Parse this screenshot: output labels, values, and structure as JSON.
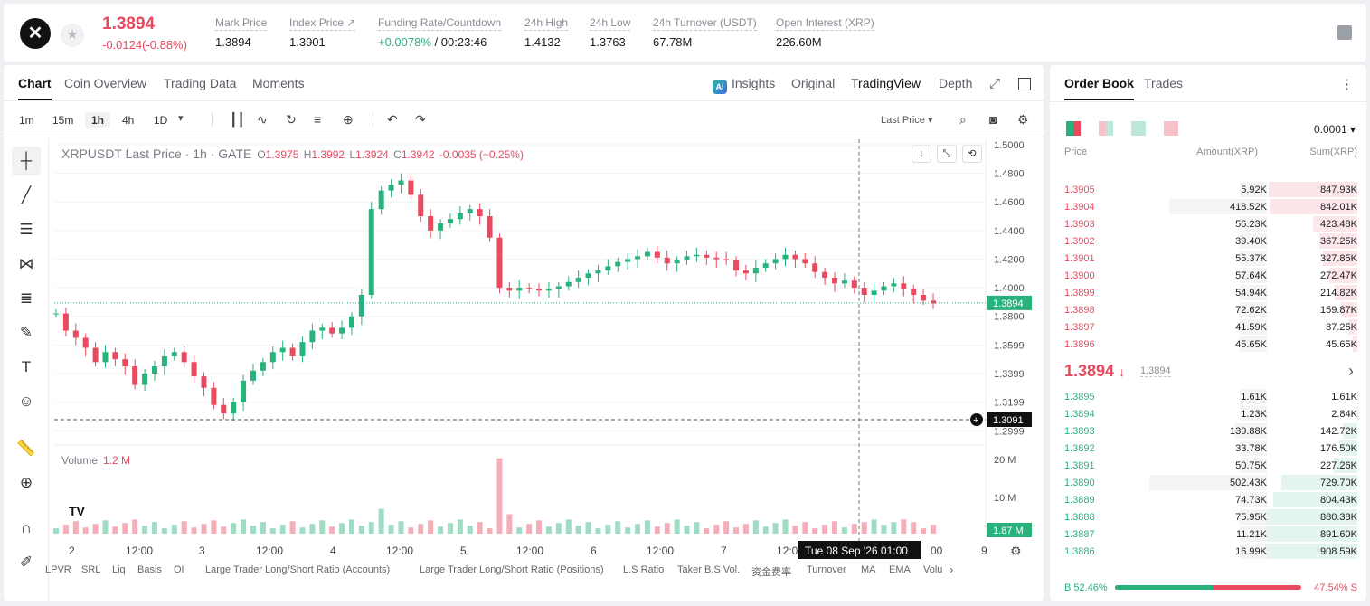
{
  "header": {
    "logo_glyph": "✕",
    "star_glyph": "★",
    "price": "1.3894",
    "change": "-0.0124(-0.88%)",
    "stats": [
      {
        "label": "Mark Price",
        "value": "1.3894"
      },
      {
        "label": "Index Price ↗",
        "value": "1.3901"
      },
      {
        "label": "Funding Rate/Countdown",
        "value_green": "+0.0078%",
        "value": "/ 00:23:46"
      },
      {
        "label": "24h High",
        "value": "1.4132"
      },
      {
        "label": "24h Low",
        "value": "1.3763"
      },
      {
        "label": "24h Turnover (USDT)",
        "value": "67.78M"
      },
      {
        "label": "Open Interest (XRP)",
        "value": "226.60M"
      }
    ]
  },
  "chart_tabs": {
    "items": [
      "Chart",
      "Coin Overview",
      "Trading Data",
      "Moments"
    ],
    "right": [
      "Insights",
      "Original",
      "TradingView",
      "Depth"
    ],
    "ai": "AI"
  },
  "intervals": [
    "1m",
    "15m",
    "1h",
    "4h",
    "1D"
  ],
  "toolbar": {
    "last_price": "Last Price ▾",
    "dropdown": "▾"
  },
  "legend": {
    "title": "XRPUSDT Last Price · 1h · GATE",
    "o": "1.3975",
    "h": "1.3992",
    "l": "1.3924",
    "c": "1.3942",
    "chg": "-0.0035 (−0.25%)",
    "o_l": "O",
    "h_l": "H",
    "l_l": "L",
    "c_l": "C"
  },
  "volume": {
    "label": "Volume",
    "value": "1.2 M"
  },
  "axis": {
    "price_ticks": [
      "1.5000",
      "1.4800",
      "1.4600",
      "1.4400",
      "1.4200",
      "1.4000",
      "1.3800",
      "1.3599",
      "1.3399",
      "1.3199",
      "1.2999"
    ],
    "vol_ticks": [
      "20 M",
      "10 M"
    ],
    "x_ticks": [
      "2",
      "12:00",
      "3",
      "12:00",
      "4",
      "12:00",
      "5",
      "12:00",
      "6",
      "12:00",
      "7",
      "12:0",
      "00",
      "9"
    ],
    "price_label": "1.3894",
    "cross_label": "1.3091",
    "vol_label": "1.87 M",
    "time_label": "Tue 08 Sep '26   01:00"
  },
  "indicators": [
    "LPVR",
    "SRL",
    "Liq",
    "Basis",
    "OI",
    "Large Trader Long/Short Ratio (Accounts)",
    "Large Trader Long/Short Ratio (Positions)",
    "L.S Ratio",
    "Taker B.S Vol.",
    "资金费率",
    "Turnover",
    "MA",
    "EMA",
    "Volu"
  ],
  "chart_data": {
    "type": "candlestick",
    "ylim": [
      1.29,
      1.5
    ],
    "ylabel": "",
    "xlabel": "",
    "approx_closes": [
      1.382,
      1.37,
      1.365,
      1.358,
      1.348,
      1.355,
      1.35,
      1.345,
      1.332,
      1.34,
      1.345,
      1.352,
      1.355,
      1.348,
      1.338,
      1.33,
      1.318,
      1.312,
      1.32,
      1.335,
      1.342,
      1.348,
      1.355,
      1.358,
      1.352,
      1.362,
      1.37,
      1.372,
      1.368,
      1.372,
      1.38,
      1.395,
      1.455,
      1.468,
      1.472,
      1.475,
      1.465,
      1.45,
      1.44,
      1.445,
      1.448,
      1.452,
      1.455,
      1.45,
      1.435,
      1.4,
      1.398,
      1.4,
      1.399,
      1.398,
      1.399,
      1.401,
      1.404,
      1.407,
      1.41,
      1.412,
      1.415,
      1.418,
      1.42,
      1.422,
      1.425,
      1.421,
      1.417,
      1.419,
      1.422,
      1.423,
      1.421,
      1.42,
      1.419,
      1.412,
      1.41,
      1.414,
      1.417,
      1.42,
      1.423,
      1.42,
      1.417,
      1.411,
      1.407,
      1.403,
      1.405,
      1.4,
      1.395,
      1.398,
      1.401,
      1.403,
      1.399,
      1.395,
      1.391,
      1.389
    ]
  },
  "book": {
    "tabs": [
      "Order Book",
      "Trades"
    ],
    "precision": "0.0001 ▾",
    "headers": [
      "Price",
      "Amount(XRP)",
      "Sum(XRP)"
    ],
    "asks": [
      [
        "1.3905",
        "5.92K",
        "847.93K"
      ],
      [
        "1.3904",
        "418.52K",
        "842.01K"
      ],
      [
        "1.3903",
        "56.23K",
        "423.48K"
      ],
      [
        "1.3902",
        "39.40K",
        "367.25K"
      ],
      [
        "1.3901",
        "55.37K",
        "327.85K"
      ],
      [
        "1.3900",
        "57.64K",
        "272.47K"
      ],
      [
        "1.3899",
        "54.94K",
        "214.82K"
      ],
      [
        "1.3898",
        "72.62K",
        "159.87K"
      ],
      [
        "1.3897",
        "41.59K",
        "87.25K"
      ],
      [
        "1.3896",
        "45.65K",
        "45.65K"
      ]
    ],
    "mid": "1.3894",
    "mid_arrow": "↓",
    "mid_ref": "1.3894",
    "mid_chev": "›",
    "bids": [
      [
        "1.3895",
        "1.61K",
        "1.61K"
      ],
      [
        "1.3894",
        "1.23K",
        "2.84K"
      ],
      [
        "1.3893",
        "139.88K",
        "142.72K"
      ],
      [
        "1.3892",
        "33.78K",
        "176.50K"
      ],
      [
        "1.3891",
        "50.75K",
        "227.26K"
      ],
      [
        "1.3890",
        "502.43K",
        "729.70K"
      ],
      [
        "1.3889",
        "74.73K",
        "804.43K"
      ],
      [
        "1.3888",
        "75.95K",
        "880.38K"
      ],
      [
        "1.3887",
        "11.21K",
        "891.60K"
      ],
      [
        "1.3886",
        "16.99K",
        "908.59K"
      ]
    ],
    "buy_ratio": "B 52.46%",
    "sell_ratio": "47.54% S",
    "buy_pct": 52.46
  },
  "colors": {
    "up": "#28b27c",
    "down": "#e84a5f"
  }
}
